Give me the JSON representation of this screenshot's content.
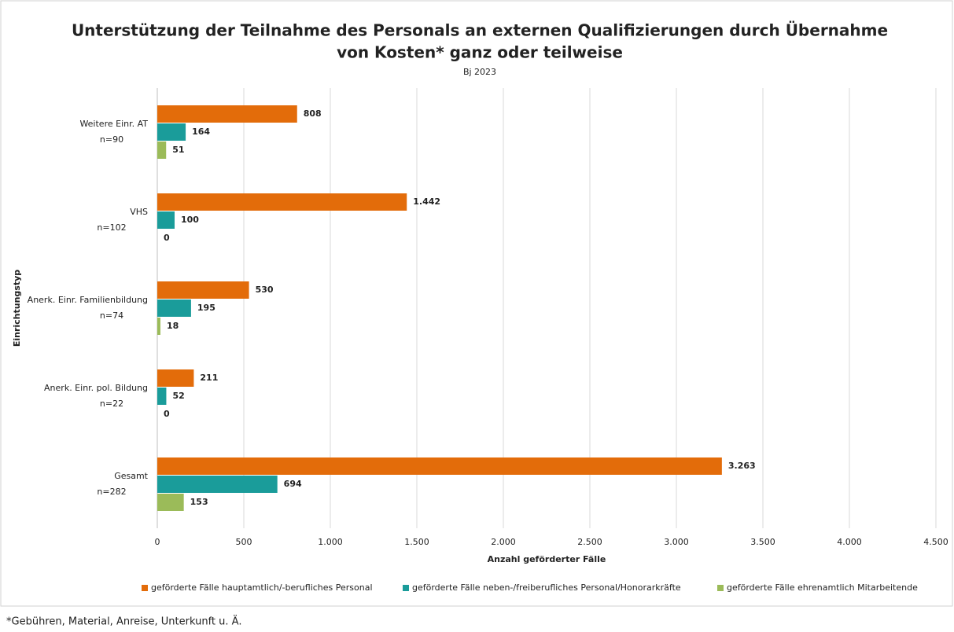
{
  "chart_data": {
    "type": "hbar",
    "title": "Unterstützung der Teilnahme des Personals an externen Qualifizierungen durch Übernahme",
    "title_line2": "von Kosten* ganz oder teilweise",
    "subtitle": "Bj 2023",
    "categories": [
      "Weitere Einr. AT",
      "VHS",
      "Anerk. Einr. Familienbildung",
      "Anerk. Einr. pol. Bildung",
      "Gesamt"
    ],
    "category_notes": [
      "n=90",
      "n=102",
      "n=74",
      "n=22",
      "n=282"
    ],
    "series": [
      {
        "name": "geförderte Fälle hauptamtlich/-berufliches Personal",
        "color": "#e36c0a",
        "values": [
          808,
          1442,
          530,
          211,
          3263
        ],
        "value_labels": [
          "808",
          "1.442",
          "530",
          "211",
          "3.263"
        ]
      },
      {
        "name": "geförderte Fälle neben-/freiberufliches Personal/Honorarkräfte",
        "color": "#1a9c9a",
        "values": [
          164,
          100,
          195,
          52,
          694
        ],
        "value_labels": [
          "164",
          "100",
          "195",
          "52",
          "694"
        ]
      },
      {
        "name": "geförderte Fälle ehrenamtlich Mitarbeitende",
        "color": "#9bbb59",
        "values": [
          51,
          0,
          18,
          0,
          153
        ],
        "value_labels": [
          "51",
          "0",
          "18",
          "0",
          "153"
        ]
      }
    ],
    "xlim": [
      0,
      4500
    ],
    "xticks": [
      0,
      500,
      {
        "value": 1000,
        "label": "1.000"
      },
      {
        "value": 1500,
        "label": "1.500"
      },
      {
        "value": 2000,
        "label": "2.000"
      },
      {
        "value": 2500,
        "label": "2.500"
      },
      {
        "value": 3000,
        "label": "3.000"
      },
      {
        "value": 3500,
        "label": "3.500"
      },
      {
        "value": 4000,
        "label": "4.000"
      },
      {
        "value": 4500,
        "label": "4.500"
      }
    ],
    "xlabel": "Anzahl geförderter Fälle",
    "ylabel": "Einrichtungstyp",
    "grid": true,
    "legend": "bottom",
    "footnote": "*Gebühren, Material, Anreise, Unterkunft u. Ä."
  }
}
